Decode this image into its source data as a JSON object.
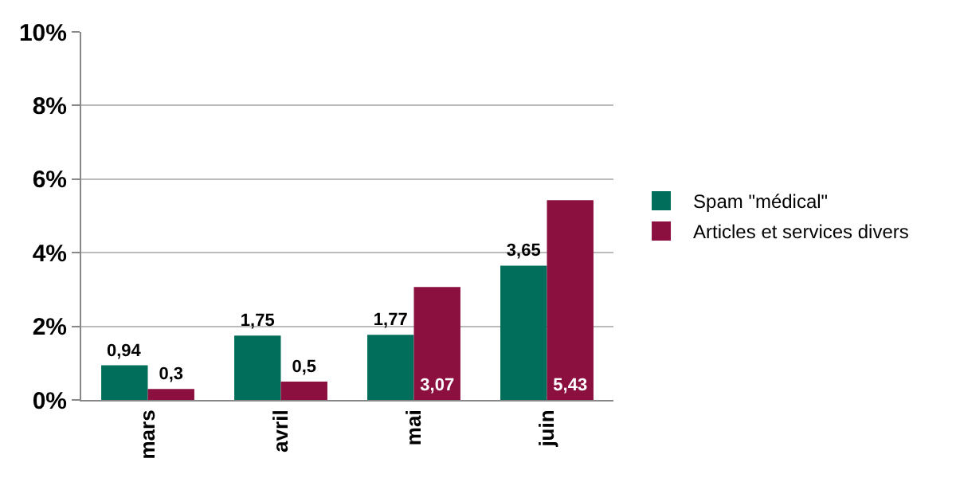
{
  "chart_data": {
    "type": "bar",
    "categories": [
      "mars",
      "avril",
      "mai",
      "juin"
    ],
    "series": [
      {
        "name": "Spam \"médical\"",
        "color": "#006e5a",
        "values": [
          0.94,
          1.75,
          1.77,
          3.65
        ],
        "value_labels": [
          "0,94",
          "1,75",
          "1,77",
          "3,65"
        ]
      },
      {
        "name": "Articles et services divers",
        "color": "#8b1040",
        "values": [
          0.3,
          0.5,
          3.07,
          5.43
        ],
        "value_labels": [
          "0,3",
          "0,5",
          "3,07",
          "5,43"
        ]
      }
    ],
    "ylim": [
      0,
      10
    ],
    "yticks": [
      {
        "value": 0,
        "label": "0%"
      },
      {
        "value": 2,
        "label": "2%"
      },
      {
        "value": 4,
        "label": "4%"
      },
      {
        "value": 6,
        "label": "6%"
      },
      {
        "value": 8,
        "label": "8%"
      },
      {
        "value": 10,
        "label": "10%"
      }
    ],
    "grid": "y",
    "legend": "right"
  }
}
